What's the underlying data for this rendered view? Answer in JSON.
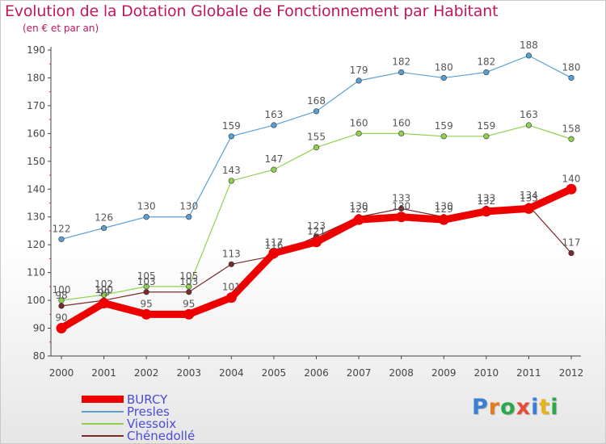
{
  "title": "Evolution de la Dotation Globale de Fonctionnement par Habitant",
  "subtitle": "(en € et par an)",
  "logo": {
    "text": "Proxiti",
    "letter_colors": [
      "#3a7fd5",
      "#e8791a",
      "#2aa84a",
      "#e84a3a",
      "#3a7fd5",
      "#e8b21a",
      "#2aa84a"
    ]
  },
  "chart_data": {
    "type": "line",
    "title": "Evolution de la Dotation Globale de Fonctionnement par Habitant",
    "subtitle": "(en € et par an)",
    "x": [
      "2000",
      "2001",
      "2002",
      "2003",
      "2004",
      "2005",
      "2006",
      "2007",
      "2008",
      "2009",
      "2010",
      "2011",
      "2012"
    ],
    "ylim": [
      80,
      190
    ],
    "yticks": [
      80,
      90,
      100,
      110,
      120,
      130,
      140,
      150,
      160,
      170,
      180,
      190
    ],
    "grid": false,
    "legend_position": "bottom-left",
    "series": [
      {
        "name": "BURCY",
        "color": "#ee0000",
        "values": [
          90,
          99,
          95,
          95,
          101,
          117,
          121,
          129,
          130,
          129,
          132,
          133,
          140
        ],
        "labels": [
          "90",
          "99",
          "95",
          "95",
          "101",
          "117",
          "121",
          "129",
          "130",
          "129",
          "132",
          "133",
          "140"
        ]
      },
      {
        "name": "Presles",
        "color": "#5a9fd4",
        "values": [
          122,
          126,
          130,
          130,
          159,
          163,
          168,
          179,
          182,
          180,
          182,
          188,
          180
        ],
        "labels": [
          "122",
          "126",
          "130",
          "130",
          "159",
          "163",
          "168",
          "179",
          "182",
          "180",
          "182",
          "188",
          "180"
        ]
      },
      {
        "name": "Viessoix",
        "color": "#8fd14f",
        "values": [
          100,
          102,
          105,
          105,
          143,
          147,
          155,
          160,
          160,
          159,
          159,
          163,
          158
        ],
        "labels": [
          "100",
          "102",
          "105",
          "105",
          "143",
          "147",
          "155",
          "160",
          "160",
          "159",
          "159",
          "163",
          "158"
        ]
      },
      {
        "name": "Chénedollé",
        "color": "#7a2a2a",
        "values": [
          98,
          100,
          103,
          103,
          113,
          116,
          123,
          130,
          133,
          130,
          133,
          134,
          117
        ],
        "labels": [
          "98",
          "100",
          "103",
          "103",
          "113",
          "116",
          "123",
          "130",
          "133",
          "130",
          "133",
          "134",
          "117"
        ]
      }
    ]
  }
}
